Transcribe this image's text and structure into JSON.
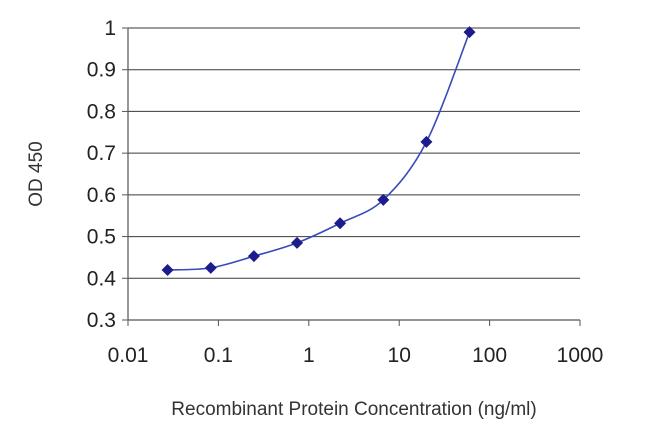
{
  "chart_data": {
    "type": "line",
    "title": "",
    "xlabel": "Recombinant Protein Concentration (ng/ml)",
    "ylabel": "OD 450",
    "x_scale": "log",
    "xlim": [
      0.01,
      1000
    ],
    "ylim": [
      0.3,
      1.0
    ],
    "x_ticks": [
      "0.01",
      "0.1",
      "1",
      "10",
      "100",
      "1000"
    ],
    "y_ticks": [
      "0.3",
      "0.4",
      "0.5",
      "0.6",
      "0.7",
      "0.8",
      "0.9",
      "1"
    ],
    "grid": "horizontal",
    "legend": "none",
    "series": [
      {
        "x": [
          0.0274,
          0.0823,
          0.247,
          0.741,
          2.22,
          6.67,
          20,
          60
        ],
        "y": [
          0.42,
          0.425,
          0.453,
          0.485,
          0.532,
          0.588,
          0.727,
          0.99
        ],
        "color": "#1c1c8c",
        "line_color": "#3a4ab8",
        "marker": "diamond"
      }
    ]
  }
}
